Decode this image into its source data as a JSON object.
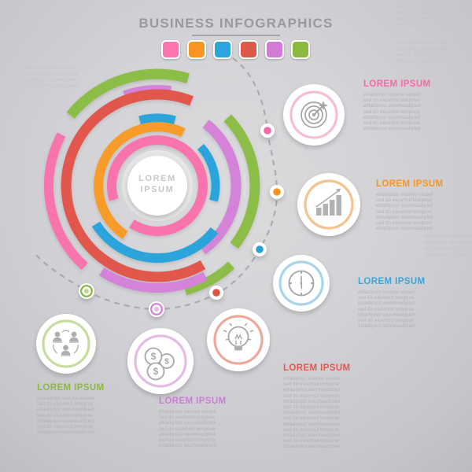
{
  "header": {
    "title": "BUSINESS INFOGRAPHICS",
    "palette": [
      "#fb76b0",
      "#f79422",
      "#2ca5dd",
      "#dd5a4b",
      "#d379d6",
      "#8bb83e"
    ]
  },
  "center": {
    "line1": "LOREM",
    "line2": "IPSUM"
  },
  "items": [
    {
      "id": "goal",
      "icon": "target-icon",
      "color": "#f768a8",
      "ring": "#f7bdd4",
      "heading": "LOREM IPSUM",
      "lines": [
        "elitadipisci eiusmo eiusell",
        "sed do eiusmod tempose",
        "elitadipisci eiusmoadipieli",
        "sed do eiusmod tempose",
        "elitadipisci eiusmoadipieli",
        "sed do eiusmod tempose",
        "elitadipisci eiusmoadipieli"
      ]
    },
    {
      "id": "growth",
      "icon": "growth-chart-icon",
      "color": "#f79422",
      "ring": "#f6c28e",
      "heading": "LOREM IPSUM",
      "lines": [
        "elitadipisci eiusmo eiusell",
        "sed do eiusmod tempose",
        "elitadipisci eiusmoadipieli",
        "sed do eiusmod tempose",
        "elitadipisci eiusmoadipieli",
        "sed do eiusmod tempose",
        "elitadipisci eiusmoadipieli"
      ]
    },
    {
      "id": "time",
      "icon": "clock-icon",
      "color": "#3ba6d9",
      "ring": "#a8d5ec",
      "heading": "LOREM IPSUM",
      "lines": [
        "elitadipisci eiusmo eiusell",
        "sed do eiusmod tempose",
        "elitadipisci eiusmoadipieli",
        "sed do eiusmod tempose",
        "elitadipisci eiusmoadipieli",
        "sed do eiusmod tempose",
        "elitadipisci eiusmoadipieli"
      ]
    },
    {
      "id": "idea",
      "icon": "lightbulb-icon",
      "color": "#e2574c",
      "ring": "#f0a79b",
      "heading": "LOREM IPSUM",
      "lines": [
        "elitadipisci eiusmo eiusell",
        "sed do eiusmod tempose",
        "elitadipisci eiusmoadipieli",
        "sed do eiusmod tempose",
        "elitadipisci eiusmoadipieli",
        "sed do eiusmod tempose",
        "elitadipisci eiusmoadipieli",
        "sed do eiusmod tempose",
        "elitadipisci eiusmoadipieli",
        "sed do eiusmod tempose",
        "elitadipisci eiusmoadipieli",
        "sed do eiusmod tempose",
        "elitadipisci eiusmoadipieli"
      ]
    },
    {
      "id": "finance",
      "icon": "coins-icon",
      "color": "#c97fd1",
      "ring": "#e5bce6",
      "heading": "LOREM IPSUM",
      "lines": [
        "elitadipisci eiusmo eiusell",
        "sed do eiusmod tempose",
        "elitadipisci eiusmoadipieli",
        "sed do eiusmod tempose",
        "elitadipisci eiusmoadipieli",
        "sed do eiusmod tempose",
        "elitadipisci eiusmoadipieli"
      ]
    },
    {
      "id": "team",
      "icon": "team-icon",
      "color": "#8cb944",
      "ring": "#c8dca2",
      "heading": "LOREM IPSUM",
      "lines": [
        "elitadipisci eiusmo eiusell",
        "sed do eiusmod tempose",
        "elitadipisci eiusmoadipieli",
        "sed do eiusmod tempose",
        "elitadipisci eiusmoadipieli",
        "sed do eiusmod tempose",
        "elitadipisci eiusmoadipieli"
      ]
    }
  ],
  "faint": [
    {
      "lines": [
        "sed do eiusmod tempor",
        "elitadipisci eiusmodipiel",
        "sed do eiusmod tempor",
        "elitadipisci eiusmodipiel"
      ]
    },
    {
      "lines": [
        "sed do eiusmod tempor",
        "elitadipisci eiusmodipiel",
        "sed do eiusmod tempor",
        "elitadipisci eiusmodipiel"
      ]
    },
    {
      "lines": [
        "elitadipisci eiusmodipiel",
        "sed do eiusmod tempose",
        "elitadipisci eiusmodipiel",
        "sed do eiusmod tempose"
      ]
    },
    {
      "lines": [
        "sed do eiusmod tempor",
        "elitadipisci eiusmodipiel",
        "sed do eiusmod tempor",
        "elitadipisci eiusmodipiel"
      ]
    }
  ]
}
